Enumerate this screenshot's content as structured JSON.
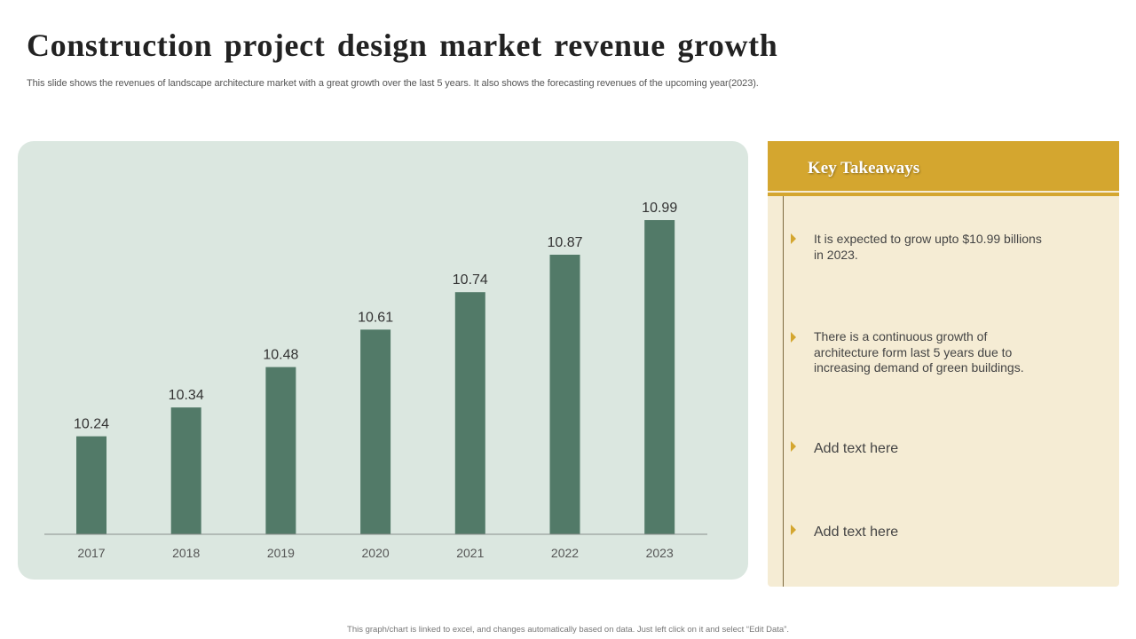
{
  "slide": {
    "title": "Construction project design market revenue growth",
    "subtitle": "This slide shows the revenues of landscape architecture market with a great growth over the last 5 years. It also shows the forecasting revenues of the upcoming year(2023).",
    "footer": "This graph/chart is linked to excel, and changes automatically based on data. Just left click on it and select “Edit Data”."
  },
  "colors": {
    "bar": "#527a68",
    "chart_panel": "#dbe7e0",
    "accent": "#d4a62f",
    "takeaways_panel": "#f5ecd4",
    "axis": "#8a8f8c"
  },
  "chart_data": {
    "type": "bar",
    "title": "",
    "xlabel": "",
    "ylabel": "",
    "categories": [
      "2017",
      "2018",
      "2019",
      "2020",
      "2021",
      "2022",
      "2023"
    ],
    "values": [
      10.24,
      10.34,
      10.48,
      10.61,
      10.74,
      10.87,
      10.99
    ],
    "value_labels": [
      "10.24",
      "10.34",
      "10.48",
      "10.61",
      "10.74",
      "10.87",
      "10.99"
    ],
    "ylim": [
      9.9,
      11.1
    ],
    "grid": false,
    "legend": "none"
  },
  "takeaways": {
    "title": "Key Takeaways",
    "items": [
      {
        "text": "It is expected to grow upto $10.99 billions in 2023."
      },
      {
        "text": "There is a continuous growth of architecture form last 5 years due to increasing demand of green buildings."
      },
      {
        "text": "Add text here"
      },
      {
        "text": "Add text here"
      }
    ]
  }
}
